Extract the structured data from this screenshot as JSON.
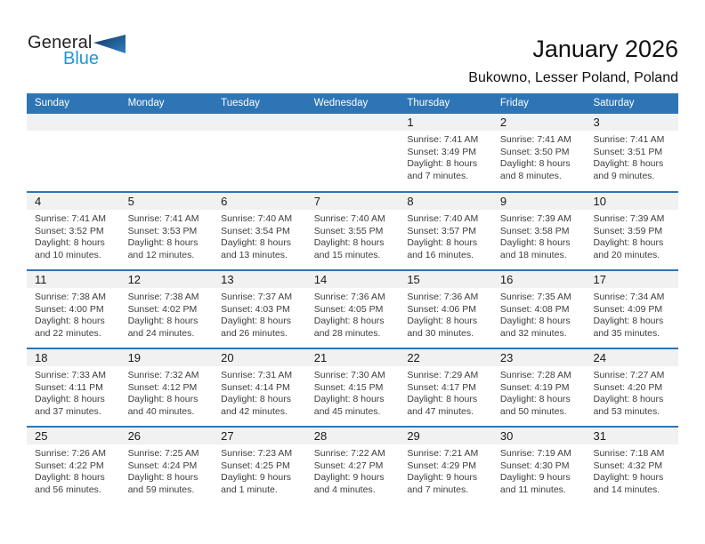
{
  "logo": {
    "general": "General",
    "blue": "Blue"
  },
  "header": {
    "title": "January 2026",
    "subtitle": "Bukowno, Lesser Poland, Poland"
  },
  "colors": {
    "header_blue": "#2e75b6",
    "row_separator_blue": "#2e75b6",
    "date_strip_gray": "#f1f1f1",
    "logo_blue": "#2196d6",
    "logo_triangle_dark": "#16365c",
    "logo_triangle_light": "#2e80c4"
  },
  "calendar": {
    "day_headers": [
      "Sunday",
      "Monday",
      "Tuesday",
      "Wednesday",
      "Thursday",
      "Friday",
      "Saturday"
    ],
    "weeks": [
      {
        "days": [
          null,
          null,
          null,
          null,
          {
            "date": "1",
            "sunrise": "Sunrise: 7:41 AM",
            "sunset": "Sunset: 3:49 PM",
            "daylight": "Daylight: 8 hours and 7 minutes."
          },
          {
            "date": "2",
            "sunrise": "Sunrise: 7:41 AM",
            "sunset": "Sunset: 3:50 PM",
            "daylight": "Daylight: 8 hours and 8 minutes."
          },
          {
            "date": "3",
            "sunrise": "Sunrise: 7:41 AM",
            "sunset": "Sunset: 3:51 PM",
            "daylight": "Daylight: 8 hours and 9 minutes."
          }
        ]
      },
      {
        "days": [
          {
            "date": "4",
            "sunrise": "Sunrise: 7:41 AM",
            "sunset": "Sunset: 3:52 PM",
            "daylight": "Daylight: 8 hours and 10 minutes."
          },
          {
            "date": "5",
            "sunrise": "Sunrise: 7:41 AM",
            "sunset": "Sunset: 3:53 PM",
            "daylight": "Daylight: 8 hours and 12 minutes."
          },
          {
            "date": "6",
            "sunrise": "Sunrise: 7:40 AM",
            "sunset": "Sunset: 3:54 PM",
            "daylight": "Daylight: 8 hours and 13 minutes."
          },
          {
            "date": "7",
            "sunrise": "Sunrise: 7:40 AM",
            "sunset": "Sunset: 3:55 PM",
            "daylight": "Daylight: 8 hours and 15 minutes."
          },
          {
            "date": "8",
            "sunrise": "Sunrise: 7:40 AM",
            "sunset": "Sunset: 3:57 PM",
            "daylight": "Daylight: 8 hours and 16 minutes."
          },
          {
            "date": "9",
            "sunrise": "Sunrise: 7:39 AM",
            "sunset": "Sunset: 3:58 PM",
            "daylight": "Daylight: 8 hours and 18 minutes."
          },
          {
            "date": "10",
            "sunrise": "Sunrise: 7:39 AM",
            "sunset": "Sunset: 3:59 PM",
            "daylight": "Daylight: 8 hours and 20 minutes."
          }
        ]
      },
      {
        "days": [
          {
            "date": "11",
            "sunrise": "Sunrise: 7:38 AM",
            "sunset": "Sunset: 4:00 PM",
            "daylight": "Daylight: 8 hours and 22 minutes."
          },
          {
            "date": "12",
            "sunrise": "Sunrise: 7:38 AM",
            "sunset": "Sunset: 4:02 PM",
            "daylight": "Daylight: 8 hours and 24 minutes."
          },
          {
            "date": "13",
            "sunrise": "Sunrise: 7:37 AM",
            "sunset": "Sunset: 4:03 PM",
            "daylight": "Daylight: 8 hours and 26 minutes."
          },
          {
            "date": "14",
            "sunrise": "Sunrise: 7:36 AM",
            "sunset": "Sunset: 4:05 PM",
            "daylight": "Daylight: 8 hours and 28 minutes."
          },
          {
            "date": "15",
            "sunrise": "Sunrise: 7:36 AM",
            "sunset": "Sunset: 4:06 PM",
            "daylight": "Daylight: 8 hours and 30 minutes."
          },
          {
            "date": "16",
            "sunrise": "Sunrise: 7:35 AM",
            "sunset": "Sunset: 4:08 PM",
            "daylight": "Daylight: 8 hours and 32 minutes."
          },
          {
            "date": "17",
            "sunrise": "Sunrise: 7:34 AM",
            "sunset": "Sunset: 4:09 PM",
            "daylight": "Daylight: 8 hours and 35 minutes."
          }
        ]
      },
      {
        "days": [
          {
            "date": "18",
            "sunrise": "Sunrise: 7:33 AM",
            "sunset": "Sunset: 4:11 PM",
            "daylight": "Daylight: 8 hours and 37 minutes."
          },
          {
            "date": "19",
            "sunrise": "Sunrise: 7:32 AM",
            "sunset": "Sunset: 4:12 PM",
            "daylight": "Daylight: 8 hours and 40 minutes."
          },
          {
            "date": "20",
            "sunrise": "Sunrise: 7:31 AM",
            "sunset": "Sunset: 4:14 PM",
            "daylight": "Daylight: 8 hours and 42 minutes."
          },
          {
            "date": "21",
            "sunrise": "Sunrise: 7:30 AM",
            "sunset": "Sunset: 4:15 PM",
            "daylight": "Daylight: 8 hours and 45 minutes."
          },
          {
            "date": "22",
            "sunrise": "Sunrise: 7:29 AM",
            "sunset": "Sunset: 4:17 PM",
            "daylight": "Daylight: 8 hours and 47 minutes."
          },
          {
            "date": "23",
            "sunrise": "Sunrise: 7:28 AM",
            "sunset": "Sunset: 4:19 PM",
            "daylight": "Daylight: 8 hours and 50 minutes."
          },
          {
            "date": "24",
            "sunrise": "Sunrise: 7:27 AM",
            "sunset": "Sunset: 4:20 PM",
            "daylight": "Daylight: 8 hours and 53 minutes."
          }
        ]
      },
      {
        "days": [
          {
            "date": "25",
            "sunrise": "Sunrise: 7:26 AM",
            "sunset": "Sunset: 4:22 PM",
            "daylight": "Daylight: 8 hours and 56 minutes."
          },
          {
            "date": "26",
            "sunrise": "Sunrise: 7:25 AM",
            "sunset": "Sunset: 4:24 PM",
            "daylight": "Daylight: 8 hours and 59 minutes."
          },
          {
            "date": "27",
            "sunrise": "Sunrise: 7:23 AM",
            "sunset": "Sunset: 4:25 PM",
            "daylight": "Daylight: 9 hours and 1 minute."
          },
          {
            "date": "28",
            "sunrise": "Sunrise: 7:22 AM",
            "sunset": "Sunset: 4:27 PM",
            "daylight": "Daylight: 9 hours and 4 minutes."
          },
          {
            "date": "29",
            "sunrise": "Sunrise: 7:21 AM",
            "sunset": "Sunset: 4:29 PM",
            "daylight": "Daylight: 9 hours and 7 minutes."
          },
          {
            "date": "30",
            "sunrise": "Sunrise: 7:19 AM",
            "sunset": "Sunset: 4:30 PM",
            "daylight": "Daylight: 9 hours and 11 minutes."
          },
          {
            "date": "31",
            "sunrise": "Sunrise: 7:18 AM",
            "sunset": "Sunset: 4:32 PM",
            "daylight": "Daylight: 9 hours and 14 minutes."
          }
        ]
      }
    ]
  }
}
